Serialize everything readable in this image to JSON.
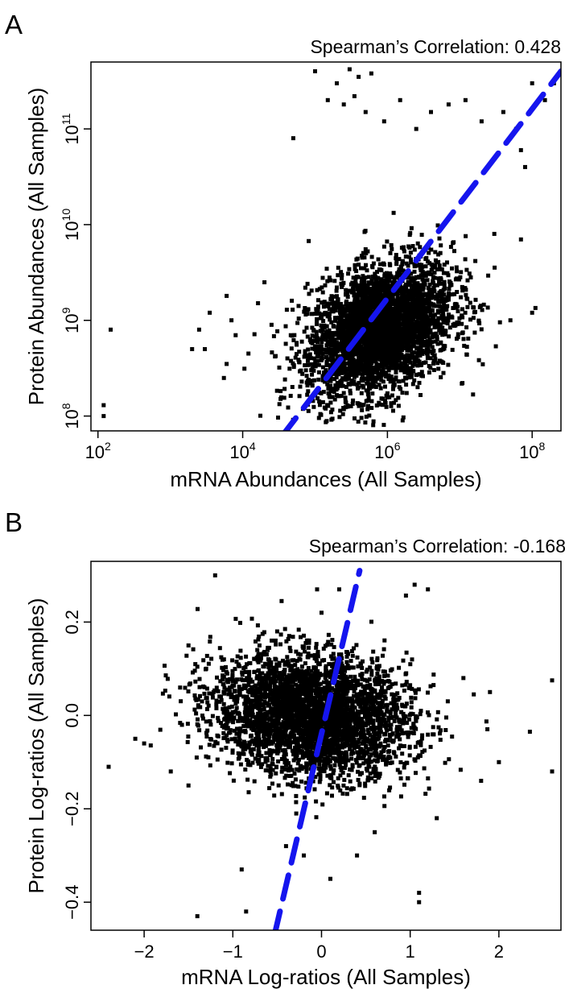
{
  "chart_data": [
    {
      "panel_label": "A",
      "type": "scatter",
      "annotation": "Spearman’s Correlation: 0.428",
      "xlabel": "mRNA Abundances (All Samples)",
      "ylabel": "Protein Abundances (All Samples)",
      "x_scale": "log",
      "y_scale": "log",
      "xlim": [
        80,
        250000000
      ],
      "ylim": [
        70000000,
        500000000000
      ],
      "x_ticks": [
        {
          "base": "10",
          "exp": "2",
          "value": 100
        },
        {
          "base": "10",
          "exp": "4",
          "value": 10000
        },
        {
          "base": "10",
          "exp": "6",
          "value": 1000000
        },
        {
          "base": "10",
          "exp": "8",
          "value": 100000000
        }
      ],
      "y_ticks": [
        {
          "base": "10",
          "exp": "8",
          "value": 100000000
        },
        {
          "base": "10",
          "exp": "9",
          "value": 1000000000
        },
        {
          "base": "10",
          "exp": "10",
          "value": 10000000000
        },
        {
          "base": "10",
          "exp": "11",
          "value": 100000000000
        }
      ],
      "marker_color": "#000000",
      "point_cloud": {
        "approx_count": 3500,
        "center": [
          800000,
          800000000
        ],
        "spread_log10": [
          0.5,
          0.35
        ],
        "covariance_rho": 0.35,
        "extra_points": [
          [
            150,
            800000000
          ],
          [
            120,
            130000000
          ],
          [
            120,
            100000000
          ],
          [
            2500,
            800000000
          ],
          [
            8000,
            700000000
          ],
          [
            6000,
            1800000000
          ],
          [
            3500,
            1200000000
          ],
          [
            7000,
            1000000000
          ],
          [
            2000,
            500000000
          ],
          [
            3000,
            500000000
          ],
          [
            6000,
            350000000
          ],
          [
            5500,
            250000000
          ],
          [
            12000,
            450000000
          ],
          [
            20000,
            2500000000
          ],
          [
            300000000,
            1100000000
          ],
          [
            100000000,
            1200000000
          ],
          [
            50000000,
            1000000000
          ],
          [
            200000000,
            300000000000
          ],
          [
            100000000,
            300000000000
          ],
          [
            150000000,
            200000000000
          ],
          [
            60000000,
            100000000000
          ],
          [
            70000000,
            60000000000
          ],
          [
            80000000,
            40000000000
          ],
          [
            40000000,
            150000000000
          ],
          [
            70000000,
            7000000000
          ],
          [
            30000000,
            8000000000
          ],
          [
            100000,
            400000000000
          ],
          [
            200000,
            300000000000
          ],
          [
            300000,
            420000000000
          ],
          [
            400000,
            350000000000
          ],
          [
            600000,
            380000000000
          ],
          [
            150000,
            200000000000
          ],
          [
            250000,
            180000000000
          ],
          [
            350000,
            220000000000
          ],
          [
            500000,
            150000000000
          ],
          [
            900000,
            120000000000
          ],
          [
            1500000,
            200000000000
          ],
          [
            2500000,
            100000000000
          ],
          [
            4000000,
            150000000000
          ],
          [
            7000000,
            180000000000
          ],
          [
            12000000,
            200000000000
          ],
          [
            20000000,
            120000000000
          ],
          [
            50000,
            80000000000
          ]
        ]
      },
      "fit_line": {
        "color": "#1515ee",
        "style": "dashed",
        "points": [
          [
            34000,
            60000000
          ],
          [
            250000000,
            400000000000
          ]
        ]
      }
    },
    {
      "panel_label": "B",
      "type": "scatter",
      "annotation": "Spearman’s Correlation: -0.168",
      "xlabel": "mRNA Log-ratios (All Samples)",
      "ylabel": "Protein Log-ratios (All Samples)",
      "x_scale": "linear",
      "y_scale": "linear",
      "xlim": [
        -2.6,
        2.7
      ],
      "ylim": [
        -0.46,
        0.33
      ],
      "x_ticks": [
        {
          "label": "−2",
          "value": -2
        },
        {
          "label": "−1",
          "value": -1
        },
        {
          "label": "0",
          "value": 0
        },
        {
          "label": "1",
          "value": 1
        },
        {
          "label": "2",
          "value": 2
        }
      ],
      "y_ticks": [
        {
          "label": "−0.4",
          "value": -0.4
        },
        {
          "label": "−0.2",
          "value": -0.2
        },
        {
          "label": "0.0",
          "value": 0
        },
        {
          "label": "0.2",
          "value": 0.2
        }
      ],
      "marker_color": "#000000",
      "point_cloud": {
        "approx_count": 3500,
        "center": [
          -0.1,
          0.0
        ],
        "spread": [
          0.55,
          0.065
        ],
        "covariance_rho": -0.15,
        "extra_points": [
          [
            -1.2,
            0.3
          ],
          [
            -2.4,
            -0.11
          ],
          [
            2.6,
            0.075
          ],
          [
            2.6,
            -0.12
          ],
          [
            2.35,
            -0.035
          ],
          [
            -1.4,
            -0.43
          ],
          [
            -0.9,
            -0.33
          ],
          [
            -0.85,
            -0.42
          ],
          [
            0.1,
            -0.35
          ],
          [
            1.1,
            -0.38
          ],
          [
            1.1,
            -0.4
          ],
          [
            1.05,
            0.28
          ],
          [
            1.2,
            0.27
          ],
          [
            -0.05,
            0.27
          ],
          [
            -0.45,
            0.245
          ],
          [
            0.2,
            0.27
          ],
          [
            0.0,
            0.22
          ],
          [
            -0.5,
            0.18
          ],
          [
            -0.7,
            0.15
          ],
          [
            -1.1,
            0.12
          ],
          [
            -1.5,
            0.15
          ],
          [
            -2.0,
            -0.06
          ],
          [
            -2.1,
            -0.05
          ],
          [
            1.8,
            -0.14
          ],
          [
            2.0,
            -0.1
          ],
          [
            1.6,
            0.08
          ],
          [
            1.9,
            0.05
          ],
          [
            -1.7,
            -0.12
          ],
          [
            -1.5,
            -0.15
          ],
          [
            0.6,
            -0.25
          ],
          [
            -0.4,
            -0.28
          ],
          [
            -0.2,
            -0.3
          ],
          [
            0.4,
            -0.3
          ],
          [
            1.3,
            -0.22
          ],
          [
            -1.3,
            0.1
          ]
        ]
      },
      "fit_line": {
        "color": "#1515ee",
        "style": "dashed",
        "points": [
          [
            -0.53,
            -0.47
          ],
          [
            0.43,
            0.31
          ]
        ]
      }
    }
  ]
}
